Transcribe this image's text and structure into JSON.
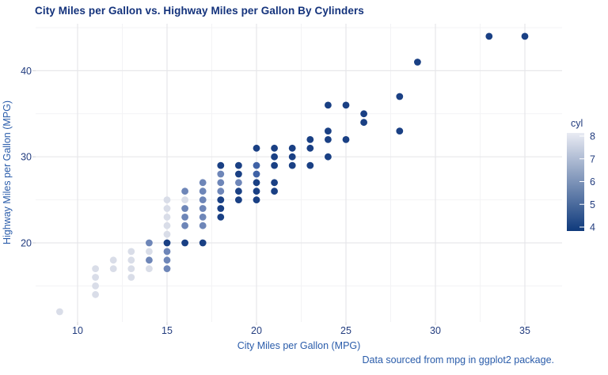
{
  "colors": {
    "background": "#ffffff",
    "title": "#14337c",
    "tick_label": "#223c7e",
    "axis_title": "#2a5caa",
    "caption": "#2a5caa",
    "grid_major": "#e7e7ea",
    "grid_minor": "#f3f3f5",
    "axis_tick_mark": "#d9d9dc",
    "cyl_colors": {
      "4": "#1a4084",
      "5": "#3f62a6",
      "6": "#6e86b8",
      "7": "#a5b2d2",
      "8": "#d9dde8"
    },
    "legend_gradient_low": "#0f3a7c",
    "legend_gradient_high": "#e9ebf3"
  },
  "chart_data": {
    "type": "scatter",
    "title": "City Miles per Gallon vs. Highway Miles per Gallon By Cylinders",
    "xlabel": "City Miles per Gallon (MPG)",
    "ylabel": "Highway Miles per Gallon (MPG)",
    "caption": "Data sourced from mpg in ggplot2 package.",
    "grid": true,
    "legend_position": "right",
    "legend": {
      "title": "cyl",
      "ticks": [
        8,
        7,
        6,
        5,
        4
      ],
      "min": 4,
      "max": 8,
      "dark_end": 4,
      "light_end": 8
    },
    "x_ticks_major": [
      10,
      15,
      20,
      25,
      30,
      35
    ],
    "x_ticks_minor": [
      12.5,
      17.5,
      22.5,
      27.5,
      32.5
    ],
    "y_ticks_major": [
      20,
      30,
      40
    ],
    "y_ticks_minor": [
      15,
      25,
      35,
      45
    ],
    "x_domain": [
      7.7,
      37.1
    ],
    "y_domain": [
      10.8,
      45.5
    ],
    "series_note": "points are [city_mpg, highway_mpg, cylinders]; color encodes cylinders (4 = dark navy, 8 = light gray-blue)",
    "points": [
      [
        9,
        12,
        8
      ],
      [
        11,
        14,
        8
      ],
      [
        11,
        15,
        8
      ],
      [
        11,
        16,
        8
      ],
      [
        11,
        17,
        8
      ],
      [
        12,
        17,
        8
      ],
      [
        12,
        18,
        8
      ],
      [
        13,
        16,
        8
      ],
      [
        13,
        17,
        8
      ],
      [
        13,
        18,
        8
      ],
      [
        13,
        19,
        8
      ],
      [
        14,
        17,
        8
      ],
      [
        14,
        18,
        6
      ],
      [
        14,
        19,
        8
      ],
      [
        14,
        20,
        6
      ],
      [
        15,
        17,
        6
      ],
      [
        15,
        18,
        6
      ],
      [
        15,
        19,
        6
      ],
      [
        15,
        20,
        4
      ],
      [
        15,
        21,
        8
      ],
      [
        15,
        22,
        8
      ],
      [
        15,
        23,
        8
      ],
      [
        15,
        24,
        8
      ],
      [
        15,
        25,
        8
      ],
      [
        16,
        20,
        4
      ],
      [
        16,
        22,
        6
      ],
      [
        16,
        23,
        6
      ],
      [
        16,
        24,
        6
      ],
      [
        16,
        25,
        8
      ],
      [
        16,
        26,
        6
      ],
      [
        17,
        20,
        4
      ],
      [
        17,
        22,
        6
      ],
      [
        17,
        23,
        6
      ],
      [
        17,
        24,
        6
      ],
      [
        17,
        25,
        6
      ],
      [
        17,
        26,
        6
      ],
      [
        17,
        27,
        6
      ],
      [
        18,
        23,
        4
      ],
      [
        18,
        24,
        4
      ],
      [
        18,
        25,
        4
      ],
      [
        18,
        26,
        6
      ],
      [
        18,
        27,
        6
      ],
      [
        18,
        28,
        6
      ],
      [
        18,
        29,
        4
      ],
      [
        19,
        25,
        4
      ],
      [
        19,
        26,
        4
      ],
      [
        19,
        27,
        6
      ],
      [
        19,
        28,
        4
      ],
      [
        19,
        29,
        4
      ],
      [
        20,
        25,
        4
      ],
      [
        20,
        26,
        4
      ],
      [
        20,
        27,
        4
      ],
      [
        20,
        28,
        5
      ],
      [
        20,
        29,
        5
      ],
      [
        20,
        31,
        4
      ],
      [
        21,
        26,
        4
      ],
      [
        21,
        27,
        4
      ],
      [
        21,
        29,
        4
      ],
      [
        21,
        30,
        4
      ],
      [
        21,
        31,
        4
      ],
      [
        22,
        29,
        4
      ],
      [
        22,
        30,
        4
      ],
      [
        22,
        31,
        4
      ],
      [
        23,
        29,
        4
      ],
      [
        23,
        31,
        4
      ],
      [
        23,
        32,
        4
      ],
      [
        24,
        30,
        4
      ],
      [
        24,
        32,
        4
      ],
      [
        24,
        33,
        4
      ],
      [
        24,
        36,
        4
      ],
      [
        25,
        32,
        4
      ],
      [
        25,
        36,
        4
      ],
      [
        26,
        34,
        4
      ],
      [
        26,
        35,
        4
      ],
      [
        28,
        33,
        4
      ],
      [
        28,
        37,
        4
      ],
      [
        29,
        41,
        4
      ],
      [
        33,
        44,
        4
      ],
      [
        35,
        44,
        4
      ]
    ]
  }
}
